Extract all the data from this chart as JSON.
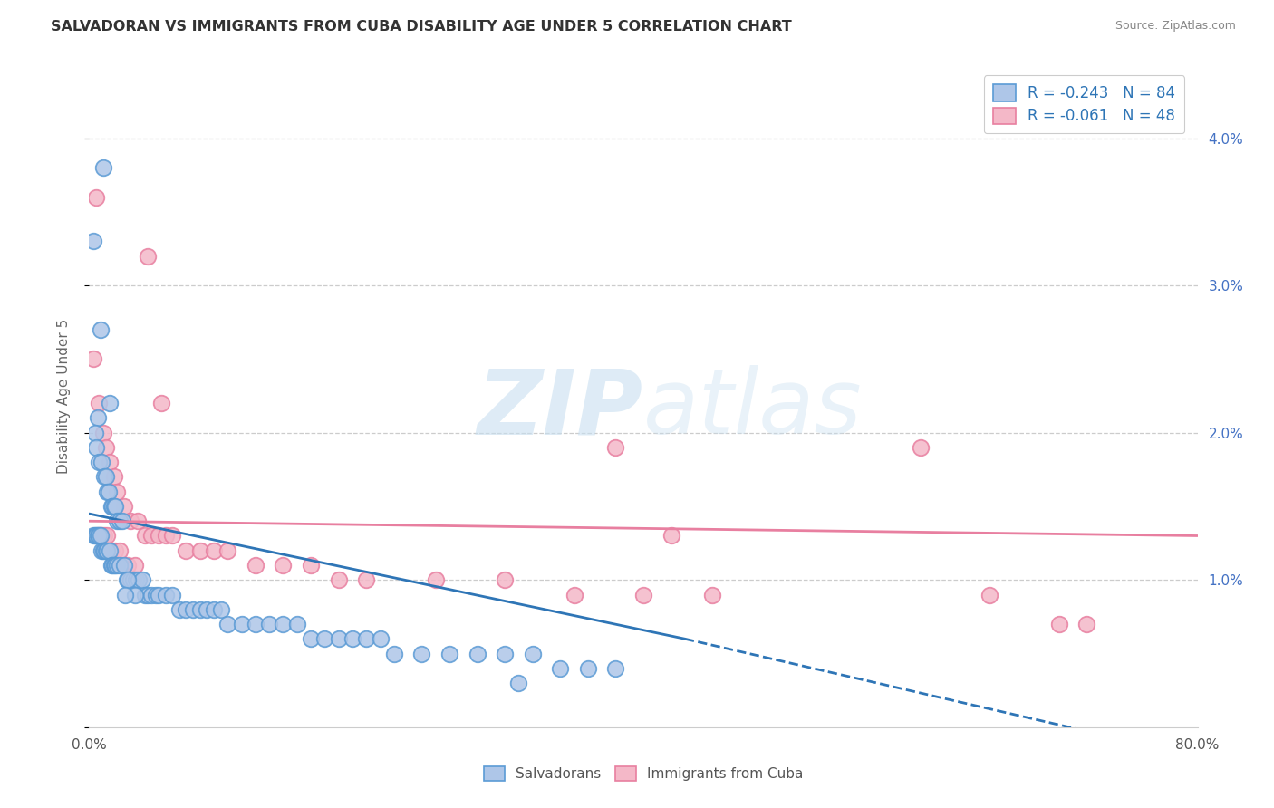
{
  "title": "SALVADORAN VS IMMIGRANTS FROM CUBA DISABILITY AGE UNDER 5 CORRELATION CHART",
  "source": "Source: ZipAtlas.com",
  "ylabel": "Disability Age Under 5",
  "x_min": 0.0,
  "x_max": 0.8,
  "y_min": 0.0,
  "y_max": 0.045,
  "x_tick_positions": [
    0.0,
    0.8
  ],
  "x_tick_labels": [
    "0.0%",
    "80.0%"
  ],
  "y_ticks_right": [
    0.01,
    0.02,
    0.03,
    0.04
  ],
  "y_tick_labels_right": [
    "1.0%",
    "2.0%",
    "3.0%",
    "4.0%"
  ],
  "blue_color": "#aec6e8",
  "blue_edge_color": "#5b9bd5",
  "pink_color": "#f4b8c8",
  "pink_edge_color": "#e87fa0",
  "blue_line_color": "#2e75b6",
  "pink_line_color": "#e87fa0",
  "blue_R": -0.243,
  "blue_N": 84,
  "pink_R": -0.061,
  "pink_N": 48,
  "legend_label_blue": "Salvadorans",
  "legend_label_pink": "Immigrants from Cuba",
  "watermark_zip": "ZIP",
  "watermark_atlas": "atlas",
  "blue_line_start_x": 0.0,
  "blue_line_start_y": 0.0145,
  "blue_line_end_x": 0.43,
  "blue_line_end_y": 0.006,
  "blue_line_dash_end_x": 0.8,
  "blue_line_dash_end_y": -0.002,
  "pink_line_start_x": 0.0,
  "pink_line_start_y": 0.014,
  "pink_line_end_x": 0.8,
  "pink_line_end_y": 0.013,
  "blue_scatter_x": [
    0.01,
    0.003,
    0.008,
    0.015,
    0.006,
    0.004,
    0.005,
    0.007,
    0.009,
    0.011,
    0.012,
    0.013,
    0.014,
    0.016,
    0.017,
    0.018,
    0.019,
    0.02,
    0.022,
    0.024,
    0.003,
    0.004,
    0.005,
    0.006,
    0.007,
    0.008,
    0.009,
    0.01,
    0.011,
    0.012,
    0.013,
    0.015,
    0.016,
    0.017,
    0.018,
    0.019,
    0.02,
    0.022,
    0.025,
    0.027,
    0.03,
    0.032,
    0.034,
    0.036,
    0.038,
    0.04,
    0.042,
    0.045,
    0.048,
    0.05,
    0.055,
    0.06,
    0.065,
    0.07,
    0.075,
    0.08,
    0.085,
    0.09,
    0.095,
    0.1,
    0.11,
    0.12,
    0.13,
    0.14,
    0.15,
    0.16,
    0.17,
    0.18,
    0.19,
    0.2,
    0.21,
    0.22,
    0.24,
    0.26,
    0.28,
    0.3,
    0.32,
    0.34,
    0.36,
    0.38,
    0.028,
    0.033,
    0.026,
    0.31
  ],
  "blue_scatter_y": [
    0.038,
    0.033,
    0.027,
    0.022,
    0.021,
    0.02,
    0.019,
    0.018,
    0.018,
    0.017,
    0.017,
    0.016,
    0.016,
    0.015,
    0.015,
    0.015,
    0.015,
    0.014,
    0.014,
    0.014,
    0.013,
    0.013,
    0.013,
    0.013,
    0.013,
    0.013,
    0.012,
    0.012,
    0.012,
    0.012,
    0.012,
    0.012,
    0.011,
    0.011,
    0.011,
    0.011,
    0.011,
    0.011,
    0.011,
    0.01,
    0.01,
    0.01,
    0.01,
    0.01,
    0.01,
    0.009,
    0.009,
    0.009,
    0.009,
    0.009,
    0.009,
    0.009,
    0.008,
    0.008,
    0.008,
    0.008,
    0.008,
    0.008,
    0.008,
    0.007,
    0.007,
    0.007,
    0.007,
    0.007,
    0.007,
    0.006,
    0.006,
    0.006,
    0.006,
    0.006,
    0.006,
    0.005,
    0.005,
    0.005,
    0.005,
    0.005,
    0.005,
    0.004,
    0.004,
    0.004,
    0.01,
    0.009,
    0.009,
    0.003
  ],
  "pink_scatter_x": [
    0.005,
    0.003,
    0.007,
    0.01,
    0.012,
    0.015,
    0.018,
    0.02,
    0.025,
    0.03,
    0.035,
    0.04,
    0.045,
    0.05,
    0.055,
    0.06,
    0.07,
    0.08,
    0.09,
    0.1,
    0.12,
    0.14,
    0.16,
    0.18,
    0.2,
    0.25,
    0.3,
    0.35,
    0.4,
    0.45,
    0.006,
    0.008,
    0.009,
    0.011,
    0.013,
    0.016,
    0.019,
    0.022,
    0.028,
    0.033,
    0.042,
    0.052,
    0.38,
    0.42,
    0.6,
    0.65,
    0.7,
    0.72
  ],
  "pink_scatter_y": [
    0.036,
    0.025,
    0.022,
    0.02,
    0.019,
    0.018,
    0.017,
    0.016,
    0.015,
    0.014,
    0.014,
    0.013,
    0.013,
    0.013,
    0.013,
    0.013,
    0.012,
    0.012,
    0.012,
    0.012,
    0.011,
    0.011,
    0.011,
    0.01,
    0.01,
    0.01,
    0.01,
    0.009,
    0.009,
    0.009,
    0.013,
    0.013,
    0.013,
    0.013,
    0.013,
    0.012,
    0.012,
    0.012,
    0.011,
    0.011,
    0.032,
    0.022,
    0.019,
    0.013,
    0.019,
    0.009,
    0.007,
    0.007
  ]
}
